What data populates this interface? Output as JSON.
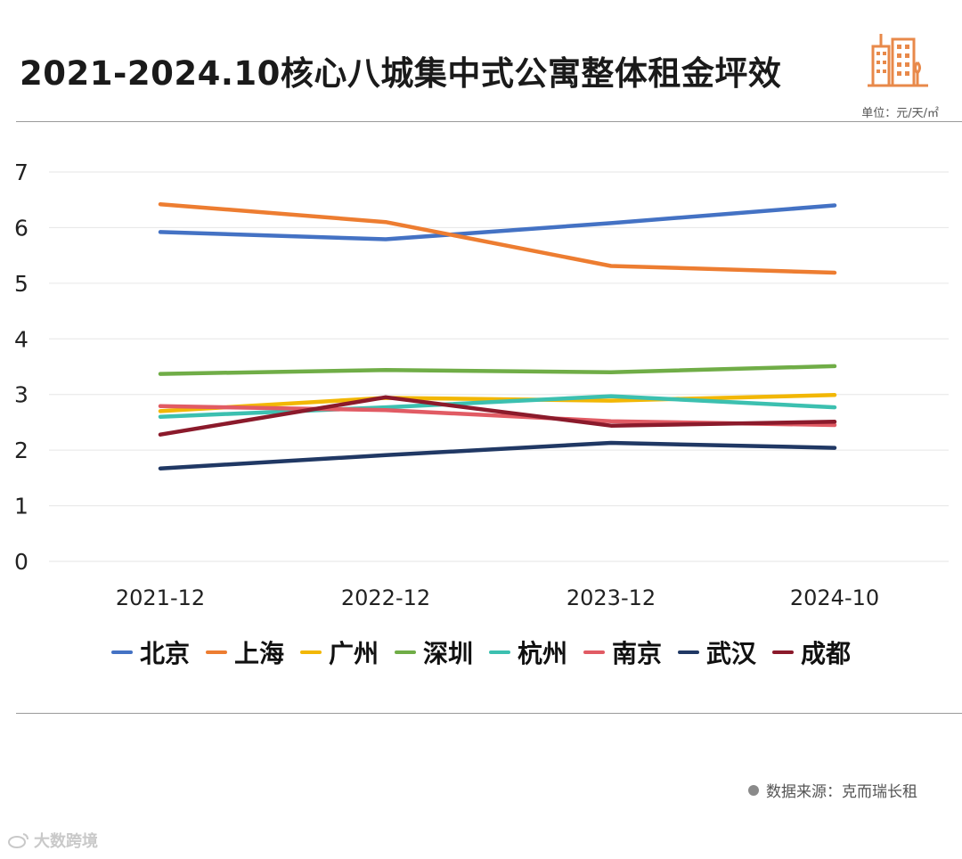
{
  "header": {
    "title": "2021-2024.10核心八城集中式公寓整体租金坪效",
    "unit": "单位：元/天/㎡"
  },
  "footer": {
    "source": "数据来源：克而瑞长租",
    "watermark": "大数跨境"
  },
  "icons": {
    "logo": "buildings-icon",
    "source_bullet": "dot-icon",
    "watermark_logo": "weibo-icon"
  },
  "chart_data": {
    "type": "line",
    "title": "2021-2024.10核心八城集中式公寓整体租金坪效",
    "xlabel": "",
    "ylabel": "",
    "categories": [
      "2021-12",
      "2022-12",
      "2023-12",
      "2024-10"
    ],
    "ylim": [
      0,
      7
    ],
    "yticks": [
      0,
      1,
      2,
      3,
      4,
      5,
      6,
      7
    ],
    "grid": true,
    "legend_position": "bottom",
    "series": [
      {
        "name": "北京",
        "color": "#4472C4",
        "values": [
          5.92,
          5.79,
          6.08,
          6.4
        ]
      },
      {
        "name": "上海",
        "color": "#ED7D31",
        "values": [
          6.42,
          6.1,
          5.31,
          5.19
        ]
      },
      {
        "name": "广州",
        "color": "#F2B705",
        "values": [
          2.7,
          2.94,
          2.89,
          2.99
        ]
      },
      {
        "name": "深圳",
        "color": "#70AD47",
        "values": [
          3.37,
          3.44,
          3.4,
          3.51
        ]
      },
      {
        "name": "杭州",
        "color": "#3CC0B0",
        "values": [
          2.6,
          2.77,
          2.97,
          2.77
        ]
      },
      {
        "name": "南京",
        "color": "#E15B64",
        "values": [
          2.79,
          2.72,
          2.52,
          2.45
        ]
      },
      {
        "name": "武汉",
        "color": "#203864",
        "values": [
          1.67,
          1.91,
          2.13,
          2.04
        ]
      },
      {
        "name": "成都",
        "color": "#8B1A2B",
        "values": [
          2.28,
          2.95,
          2.44,
          2.51
        ]
      }
    ]
  }
}
